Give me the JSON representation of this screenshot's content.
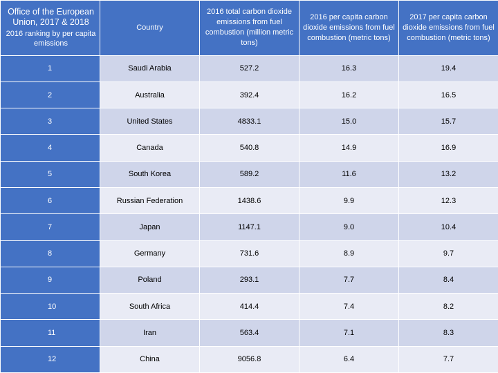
{
  "header": {
    "office_title": "Office of the European Union, 2017 & 2018",
    "rank_label": "2016 ranking by per capita emissions",
    "country": "Country",
    "total_2016": "2016 total carbon dioxide emissions from fuel combustion (million metric tons)",
    "per_capita_2016": "2016 per capita carbon dioxide emissions from fuel combustion (metric tons)",
    "per_capita_2017": "2017 per capita carbon dioxide emissions from fuel combustion (metric tons)"
  },
  "rows": [
    {
      "rank": "1",
      "country": "Saudi Arabia",
      "total_2016": "527.2",
      "pc_2016": "16.3",
      "pc_2017": "19.4"
    },
    {
      "rank": "2",
      "country": "Australia",
      "total_2016": "392.4",
      "pc_2016": "16.2",
      "pc_2017": "16.5"
    },
    {
      "rank": "3",
      "country": "United States",
      "total_2016": "4833.1",
      "pc_2016": "15.0",
      "pc_2017": "15.7"
    },
    {
      "rank": "4",
      "country": "Canada",
      "total_2016": "540.8",
      "pc_2016": "14.9",
      "pc_2017": "16.9"
    },
    {
      "rank": "5",
      "country": "South Korea",
      "total_2016": "589.2",
      "pc_2016": "11.6",
      "pc_2017": "13.2"
    },
    {
      "rank": "6",
      "country": "Russian Federation",
      "total_2016": "1438.6",
      "pc_2016": "9.9",
      "pc_2017": "12.3"
    },
    {
      "rank": "7",
      "country": "Japan",
      "total_2016": "1147.1",
      "pc_2016": "9.0",
      "pc_2017": "10.4"
    },
    {
      "rank": "8",
      "country": "Germany",
      "total_2016": "731.6",
      "pc_2016": "8.9",
      "pc_2017": "9.7"
    },
    {
      "rank": "9",
      "country": "Poland",
      "total_2016": "293.1",
      "pc_2016": "7.7",
      "pc_2017": "8.4"
    },
    {
      "rank": "10",
      "country": "South Africa",
      "total_2016": "414.4",
      "pc_2016": "7.4",
      "pc_2017": "8.2"
    },
    {
      "rank": "11",
      "country": "Iran",
      "total_2016": "563.4",
      "pc_2016": "7.1",
      "pc_2017": "8.3"
    },
    {
      "rank": "12",
      "country": "China",
      "total_2016": "9056.8",
      "pc_2016": "6.4",
      "pc_2017": "7.7"
    }
  ],
  "colors": {
    "header_blue": "#4472c4",
    "row_band_dark": "#cfd5ea",
    "row_band_light": "#e9ebf5"
  }
}
